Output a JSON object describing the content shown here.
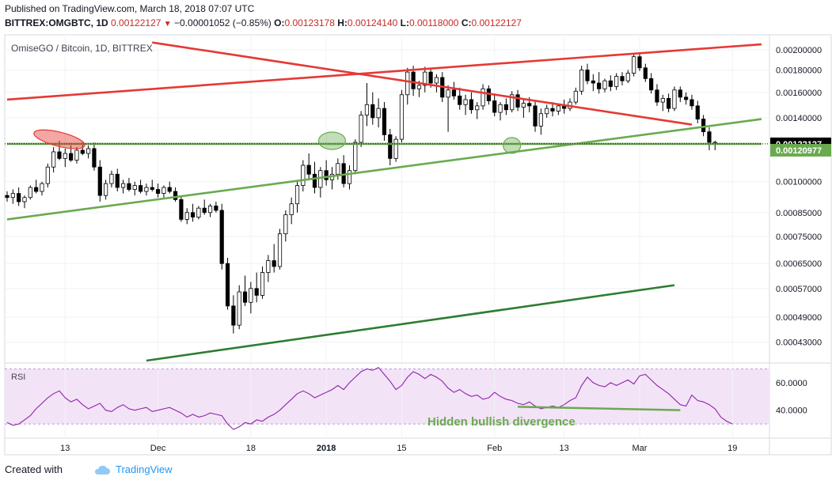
{
  "header": {
    "published": "Published on TradingView.com, March 18, 2018 07:07 UTC",
    "symbol": "BITTREX:OMGBTC, 1D",
    "last": "0.00122127",
    "change": "−0.00001052 (−0.85%)",
    "o_label": "O:",
    "o": "0.00123178",
    "h_label": "H:",
    "h": "0.00124140",
    "l_label": "L:",
    "l": "0.00118000",
    "c_label": "C:",
    "c": "0.00122127"
  },
  "footer": {
    "created_with": "Created with",
    "brand": "TradingView",
    "brand_icon": "cloud-icon"
  },
  "chart_data": [
    {
      "type": "candlestick",
      "title": "OmiseGO / Bitcoin, 1D, BITTREX",
      "y_scale": "log",
      "ylim": [
        0.00039,
        0.00213
      ],
      "y_ticks": [
        0.002,
        0.0018,
        0.0016,
        0.0014,
        0.001,
        0.00085,
        0.00075,
        0.00065,
        0.00057,
        0.00049,
        0.00043
      ],
      "y_tick_labels": [
        "0.00200000",
        "0.00180000",
        "0.00160000",
        "0.00140000",
        "0.00100000",
        "0.00085000",
        "0.00075000",
        "0.00065000",
        "0.00057000",
        "0.00049000",
        "0.00043000"
      ],
      "x_labels": [
        "13",
        "Dec",
        "18",
        "2018",
        "15",
        "Feb",
        "13",
        "Mar",
        "19"
      ],
      "last_price_label": "0.00122127",
      "second_price_label": "0.00120977",
      "colors": {
        "up": "#ffffff",
        "down": "#000000",
        "red_line": "#e53935",
        "green_line": "#6aaa4f",
        "dark_green_line": "#2e7d32",
        "last_label_bg": "#000000",
        "second_label_bg": "#6aaa4f"
      },
      "candles": [
        [
          0.00093,
          0.00095,
          0.0009,
          0.00092
        ],
        [
          0.00092,
          0.00096,
          0.00089,
          0.00094
        ],
        [
          0.00094,
          0.00097,
          0.00088,
          0.0009
        ],
        [
          0.0009,
          0.00093,
          0.00087,
          0.00092
        ],
        [
          0.00092,
          0.00098,
          0.00091,
          0.00097
        ],
        [
          0.00097,
          0.00101,
          0.00094,
          0.00095
        ],
        [
          0.00095,
          0.001,
          0.00093,
          0.00099
        ],
        [
          0.00099,
          0.0011,
          0.00097,
          0.00108
        ],
        [
          0.00108,
          0.0012,
          0.00105,
          0.00117
        ],
        [
          0.00117,
          0.00124,
          0.00112,
          0.00113
        ],
        [
          0.00113,
          0.00119,
          0.00108,
          0.00116
        ],
        [
          0.00116,
          0.00121,
          0.00111,
          0.00112
        ],
        [
          0.00112,
          0.0012,
          0.0011,
          0.00118
        ],
        [
          0.00118,
          0.00123,
          0.00115,
          0.00116
        ],
        [
          0.00116,
          0.00121,
          0.00113,
          0.00119
        ],
        [
          0.00119,
          0.00123,
          0.00106,
          0.00108
        ],
        [
          0.00108,
          0.00112,
          0.0009,
          0.00093
        ],
        [
          0.00093,
          0.00101,
          0.00091,
          0.00099
        ],
        [
          0.00099,
          0.00106,
          0.00097,
          0.00104
        ],
        [
          0.00104,
          0.00107,
          0.00095,
          0.00097
        ],
        [
          0.00097,
          0.00101,
          0.00094,
          0.00099
        ],
        [
          0.00099,
          0.00102,
          0.00095,
          0.00096
        ],
        [
          0.00096,
          0.001,
          0.00093,
          0.00098
        ],
        [
          0.00098,
          0.00101,
          0.00094,
          0.00095
        ],
        [
          0.00095,
          0.00099,
          0.00093,
          0.00097
        ],
        [
          0.00097,
          0.00101,
          0.00095,
          0.00096
        ],
        [
          0.00096,
          0.00099,
          0.00092,
          0.00094
        ],
        [
          0.00094,
          0.00098,
          0.00092,
          0.00097
        ],
        [
          0.00097,
          0.001,
          0.00094,
          0.00095
        ],
        [
          0.00095,
          0.00097,
          0.0009,
          0.00091
        ],
        [
          0.00091,
          0.00093,
          0.00081,
          0.00082
        ],
        [
          0.00082,
          0.00087,
          0.0008,
          0.00085
        ],
        [
          0.00085,
          0.00089,
          0.00081,
          0.00083
        ],
        [
          0.00083,
          0.00088,
          0.00082,
          0.00087
        ],
        [
          0.00087,
          0.00091,
          0.00084,
          0.00085
        ],
        [
          0.00085,
          0.00089,
          0.00083,
          0.00088
        ],
        [
          0.00088,
          0.0009,
          0.00085,
          0.00086
        ],
        [
          0.00086,
          0.00089,
          0.00063,
          0.00065
        ],
        [
          0.00065,
          0.00067,
          0.00051,
          0.00052
        ],
        [
          0.00052,
          0.00055,
          0.00045,
          0.00047
        ],
        [
          0.00047,
          0.00058,
          0.00046,
          0.00056
        ],
        [
          0.00056,
          0.00061,
          0.00052,
          0.00053
        ],
        [
          0.00053,
          0.00059,
          0.0005,
          0.00057
        ],
        [
          0.00057,
          0.00062,
          0.00053,
          0.00055
        ],
        [
          0.00055,
          0.00064,
          0.00054,
          0.00062
        ],
        [
          0.00062,
          0.00068,
          0.00059,
          0.00066
        ],
        [
          0.00066,
          0.00072,
          0.00062,
          0.00064
        ],
        [
          0.00064,
          0.00078,
          0.00063,
          0.00076
        ],
        [
          0.00076,
          0.00086,
          0.00073,
          0.00084
        ],
        [
          0.00084,
          0.00092,
          0.0008,
          0.00089
        ],
        [
          0.00089,
          0.001,
          0.00085,
          0.00098
        ],
        [
          0.00098,
          0.00112,
          0.00095,
          0.00109
        ],
        [
          0.00109,
          0.00116,
          0.00101,
          0.00104
        ],
        [
          0.00104,
          0.00111,
          0.00094,
          0.00097
        ],
        [
          0.00097,
          0.00108,
          0.00092,
          0.00106
        ],
        [
          0.00106,
          0.00112,
          0.00098,
          0.00101
        ],
        [
          0.00101,
          0.00108,
          0.00096,
          0.00104
        ],
        [
          0.00104,
          0.00113,
          0.00101,
          0.0011
        ],
        [
          0.0011,
          0.00115,
          0.00097,
          0.00099
        ],
        [
          0.00099,
          0.00109,
          0.00096,
          0.00106
        ],
        [
          0.00106,
          0.00125,
          0.00104,
          0.00123
        ],
        [
          0.00123,
          0.00145,
          0.0012,
          0.00142
        ],
        [
          0.00142,
          0.00168,
          0.00134,
          0.0015
        ],
        [
          0.0015,
          0.0016,
          0.00135,
          0.0014
        ],
        [
          0.0014,
          0.00155,
          0.00133,
          0.00147
        ],
        [
          0.00147,
          0.00152,
          0.00124,
          0.00128
        ],
        [
          0.00128,
          0.00132,
          0.00109,
          0.00113
        ],
        [
          0.00113,
          0.00127,
          0.00111,
          0.00125
        ],
        [
          0.00125,
          0.00162,
          0.00123,
          0.00158
        ],
        [
          0.00158,
          0.00182,
          0.0015,
          0.00178
        ],
        [
          0.00178,
          0.00184,
          0.00157,
          0.00163
        ],
        [
          0.00163,
          0.0017,
          0.00156,
          0.00166
        ],
        [
          0.00166,
          0.00183,
          0.0016,
          0.00178
        ],
        [
          0.00178,
          0.00182,
          0.00164,
          0.00168
        ],
        [
          0.00168,
          0.00176,
          0.0016,
          0.00173
        ],
        [
          0.00173,
          0.00178,
          0.00152,
          0.00156
        ],
        [
          0.00156,
          0.00166,
          0.0013,
          0.00162
        ],
        [
          0.00162,
          0.00169,
          0.00154,
          0.00157
        ],
        [
          0.00157,
          0.00164,
          0.00146,
          0.0015
        ],
        [
          0.0015,
          0.00158,
          0.00142,
          0.00154
        ],
        [
          0.00154,
          0.0016,
          0.00143,
          0.00146
        ],
        [
          0.00146,
          0.00152,
          0.00139,
          0.00149
        ],
        [
          0.00149,
          0.00167,
          0.00146,
          0.00163
        ],
        [
          0.00163,
          0.00166,
          0.0015,
          0.00153
        ],
        [
          0.00153,
          0.00159,
          0.00141,
          0.00144
        ],
        [
          0.00144,
          0.00152,
          0.00138,
          0.0015
        ],
        [
          0.0015,
          0.00155,
          0.00142,
          0.00146
        ],
        [
          0.00146,
          0.00161,
          0.00144,
          0.00158
        ],
        [
          0.00158,
          0.00162,
          0.00145,
          0.00148
        ],
        [
          0.00148,
          0.00154,
          0.0014,
          0.00151
        ],
        [
          0.00151,
          0.00156,
          0.00144,
          0.00149
        ],
        [
          0.00149,
          0.00153,
          0.0013,
          0.00134
        ],
        [
          0.00134,
          0.00147,
          0.00128,
          0.00143
        ],
        [
          0.00143,
          0.0015,
          0.0014,
          0.00147
        ],
        [
          0.00147,
          0.00152,
          0.00141,
          0.00145
        ],
        [
          0.00145,
          0.00151,
          0.00142,
          0.00149
        ],
        [
          0.00149,
          0.00154,
          0.00143,
          0.00147
        ],
        [
          0.00147,
          0.00155,
          0.00145,
          0.00152
        ],
        [
          0.00152,
          0.00164,
          0.0015,
          0.00161
        ],
        [
          0.00161,
          0.00184,
          0.00158,
          0.0018
        ],
        [
          0.0018,
          0.00186,
          0.00167,
          0.0017
        ],
        [
          0.0017,
          0.00176,
          0.00161,
          0.00168
        ],
        [
          0.00168,
          0.00178,
          0.00159,
          0.00163
        ],
        [
          0.00163,
          0.00172,
          0.0016,
          0.0017
        ],
        [
          0.0017,
          0.00175,
          0.00161,
          0.00165
        ],
        [
          0.00165,
          0.00177,
          0.00162,
          0.00174
        ],
        [
          0.00174,
          0.00178,
          0.00166,
          0.0017
        ],
        [
          0.0017,
          0.0018,
          0.00168,
          0.00177
        ],
        [
          0.00177,
          0.00196,
          0.00174,
          0.00193
        ],
        [
          0.00193,
          0.00197,
          0.00179,
          0.00182
        ],
        [
          0.00182,
          0.00186,
          0.00169,
          0.00172
        ],
        [
          0.00172,
          0.00177,
          0.00159,
          0.00162
        ],
        [
          0.00162,
          0.00167,
          0.00149,
          0.00152
        ],
        [
          0.00152,
          0.00158,
          0.00145,
          0.00155
        ],
        [
          0.00155,
          0.00159,
          0.00144,
          0.00147
        ],
        [
          0.00147,
          0.00165,
          0.00145,
          0.00162
        ],
        [
          0.00162,
          0.00165,
          0.00152,
          0.00156
        ],
        [
          0.00156,
          0.0016,
          0.0015,
          0.00154
        ],
        [
          0.00154,
          0.00158,
          0.00146,
          0.00149
        ],
        [
          0.00149,
          0.00153,
          0.00136,
          0.00139
        ],
        [
          0.00139,
          0.00142,
          0.00127,
          0.0013
        ],
        [
          0.0013,
          0.00133,
          0.00118,
          0.00123
        ],
        [
          0.00123,
          0.00124,
          0.00118,
          0.00122
        ]
      ],
      "trendlines": [
        {
          "name": "red-upper-line",
          "color": "red_line",
          "points": [
            [
              0,
              0.00154
            ],
            [
              130,
              0.00206
            ]
          ]
        },
        {
          "name": "red-descending-line",
          "color": "red_line",
          "points": [
            [
              25,
              0.00208
            ],
            [
              118,
              0.00135
            ]
          ]
        },
        {
          "name": "green-support-line",
          "color": "green_line",
          "points": [
            [
              0,
              0.00082
            ],
            [
              130,
              0.00139
            ]
          ]
        },
        {
          "name": "green-horizontal-line",
          "color": "green_line",
          "points": [
            [
              0,
              0.00122
            ],
            [
              130,
              0.00122
            ]
          ]
        },
        {
          "name": "dark-green-line",
          "color": "dark_green_line",
          "points": [
            [
              24,
              0.00039
            ],
            [
              115,
              0.00058
            ]
          ]
        }
      ],
      "ellipses": [
        {
          "name": "red-ellipse",
          "color": "red_line",
          "center": [
            9,
            0.00125
          ]
        },
        {
          "name": "green-ellipse-left",
          "color": "green_line",
          "center": [
            56,
            0.00124
          ]
        },
        {
          "name": "green-ellipse-right",
          "color": "green_line",
          "center": [
            87,
            0.00121
          ]
        }
      ]
    },
    {
      "type": "line",
      "title": "RSI",
      "ylim": [
        22,
        72
      ],
      "y_ticks": [
        60,
        40
      ],
      "y_tick_labels": [
        "60.0000",
        "40.0000"
      ],
      "colors": {
        "line": "#8e24aa",
        "band": "#f3e3f7",
        "divergence": "#6aaa4f",
        "annotation": "#6aaa4f"
      },
      "band": [
        30,
        70
      ],
      "annotation": "Hidden bullish divergence",
      "divergence_line": [
        [
          88,
          42.5
        ],
        [
          116,
          40.0
        ]
      ],
      "values": [
        31,
        29,
        30,
        33,
        36,
        41,
        45,
        49,
        52,
        54,
        49,
        46,
        48,
        44,
        41,
        43,
        45,
        40,
        39,
        42,
        44,
        41,
        40,
        41,
        42,
        39,
        40,
        41,
        42,
        40,
        38,
        35,
        37,
        35,
        36,
        38,
        37,
        36,
        30,
        26,
        28,
        31,
        30,
        33,
        32,
        35,
        37,
        40,
        44,
        48,
        52,
        54,
        52,
        49,
        51,
        53,
        55,
        58,
        55,
        60,
        64,
        68,
        70,
        69,
        71,
        66,
        61,
        55,
        58,
        64,
        68,
        66,
        63,
        66,
        64,
        61,
        56,
        53,
        55,
        52,
        50,
        51,
        48,
        49,
        53,
        50,
        48,
        47,
        45,
        44,
        46,
        43,
        41,
        42,
        43,
        42,
        44,
        47,
        49,
        58,
        64,
        60,
        58,
        57,
        60,
        58,
        60,
        62,
        59,
        65,
        66,
        62,
        58,
        55,
        52,
        48,
        44,
        43,
        51,
        47,
        46,
        44,
        41,
        35,
        32,
        30
      ]
    }
  ]
}
